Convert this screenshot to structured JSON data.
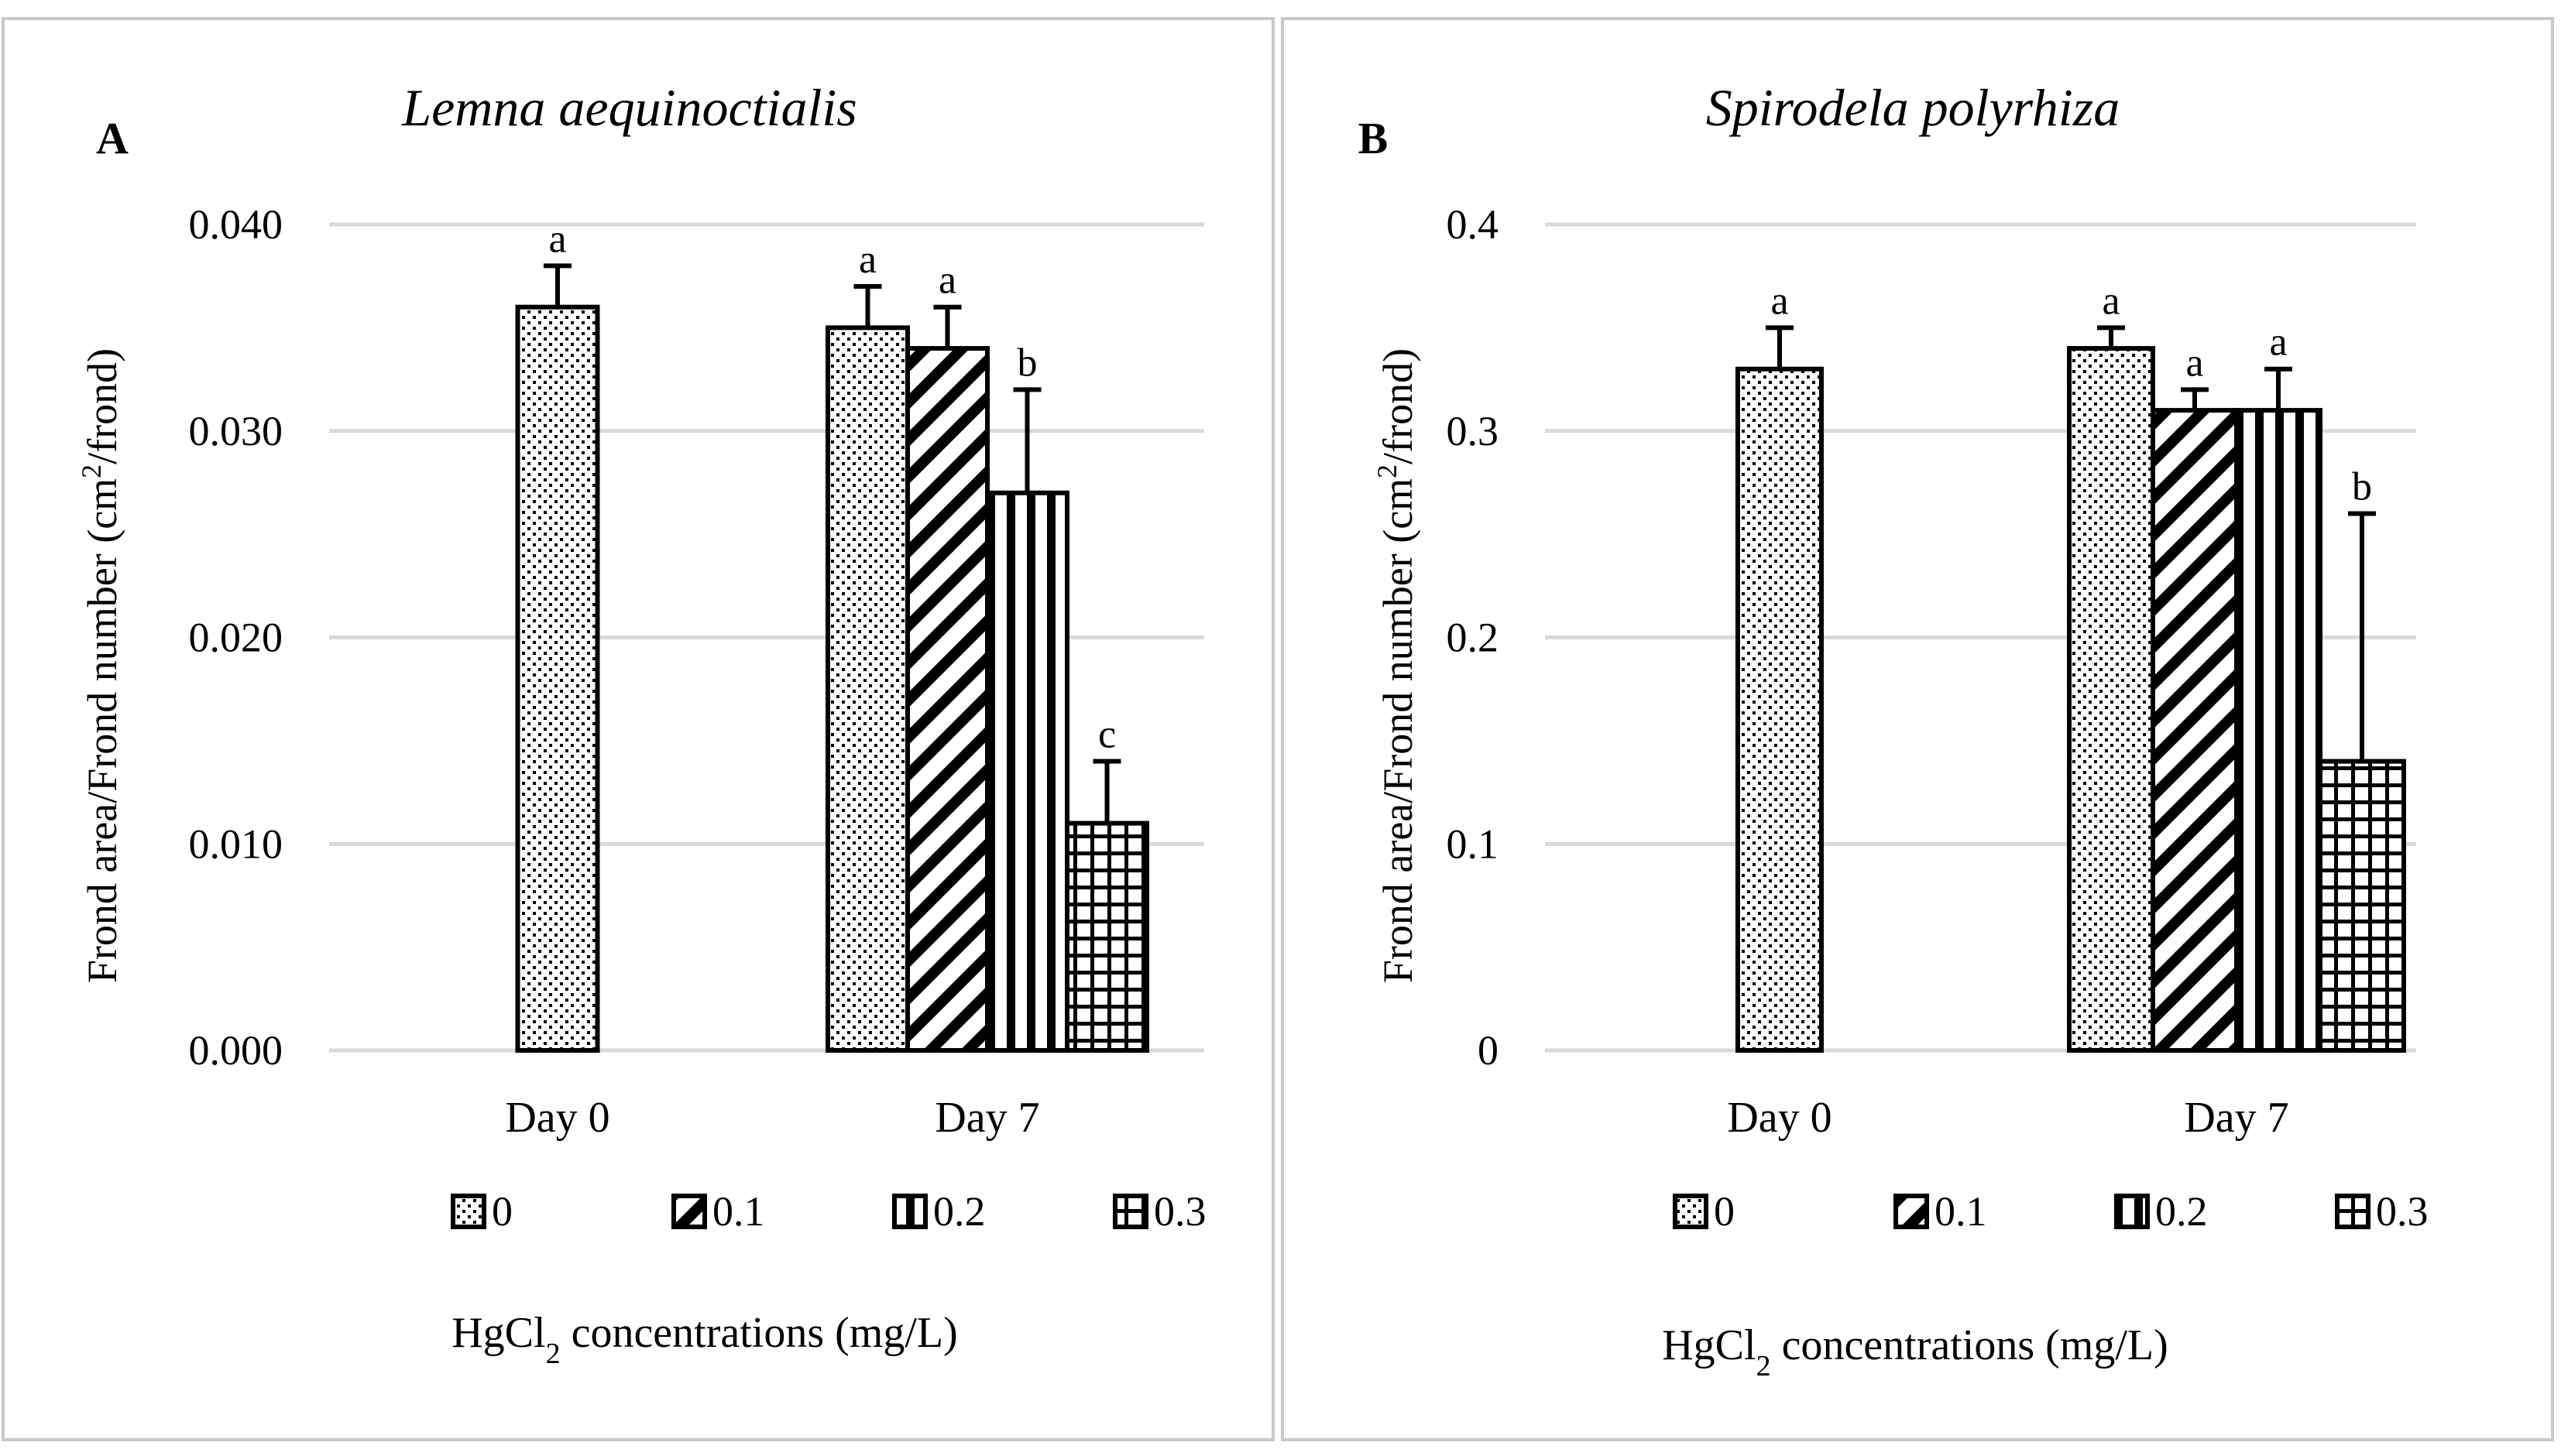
{
  "figure": {
    "legend_labels": [
      "0",
      "0.1",
      "0.2",
      "0.3"
    ],
    "pattern_names": [
      "dots",
      "diagonal",
      "vertical",
      "grid"
    ]
  },
  "chart_data": [
    {
      "type": "bar",
      "panel_label": "A",
      "title": "Lemna aequinoctialis",
      "categories": [
        "Day 0",
        "Day 7"
      ],
      "series": [
        {
          "name": "0",
          "pattern": "dots",
          "values": [
            0.036,
            0.035
          ],
          "errors": [
            0.002,
            0.002
          ],
          "letters": [
            "a",
            "a"
          ]
        },
        {
          "name": "0.1",
          "pattern": "diagonal",
          "values": [
            null,
            0.034
          ],
          "errors": [
            null,
            0.002
          ],
          "letters": [
            null,
            "a"
          ]
        },
        {
          "name": "0.2",
          "pattern": "vertical",
          "values": [
            null,
            0.027
          ],
          "errors": [
            null,
            0.005
          ],
          "letters": [
            null,
            "b"
          ]
        },
        {
          "name": "0.3",
          "pattern": "grid",
          "values": [
            null,
            0.011
          ],
          "errors": [
            null,
            0.003
          ],
          "letters": [
            null,
            "c"
          ]
        }
      ],
      "ylabel_main": "Frond area/Frond number (cm",
      "ylabel_sup": "2",
      "ylabel_end": "/frond)",
      "xlabel_main": "HgCl",
      "xlabel_sub": "2",
      "xlabel_end": " concentrations (mg/L)",
      "ylim": [
        0,
        0.04
      ],
      "yticks": [
        0,
        0.01,
        0.02,
        0.03,
        0.04
      ],
      "ytick_labels": [
        "0.000",
        "0.010",
        "0.020",
        "0.030",
        "0.040"
      ],
      "grid": true,
      "legend_position": "bottom"
    },
    {
      "type": "bar",
      "panel_label": "B",
      "title": "Spirodela polyrhiza",
      "categories": [
        "Day 0",
        "Day 7"
      ],
      "series": [
        {
          "name": "0",
          "pattern": "dots",
          "values": [
            0.33,
            0.34
          ],
          "errors": [
            0.02,
            0.01
          ],
          "letters": [
            "a",
            "a"
          ]
        },
        {
          "name": "0.1",
          "pattern": "diagonal",
          "values": [
            null,
            0.31
          ],
          "errors": [
            null,
            0.01
          ],
          "letters": [
            null,
            "a"
          ]
        },
        {
          "name": "0.2",
          "pattern": "vertical",
          "values": [
            null,
            0.31
          ],
          "errors": [
            null,
            0.02
          ],
          "letters": [
            null,
            "a"
          ]
        },
        {
          "name": "0.3",
          "pattern": "grid",
          "values": [
            null,
            0.14
          ],
          "errors": [
            null,
            0.12
          ],
          "letters": [
            null,
            "b"
          ]
        }
      ],
      "ylabel_main": "Frond area/Frond number (cm",
      "ylabel_sup": "2",
      "ylabel_end": "/frond)",
      "xlabel_main": "HgCl",
      "xlabel_sub": "2",
      "xlabel_end": " concentrations (mg/L)",
      "ylim": [
        0,
        0.4
      ],
      "yticks": [
        0,
        0.1,
        0.2,
        0.3,
        0.4
      ],
      "ytick_labels": [
        "0",
        "0.1",
        "0.2",
        "0.3",
        "0.4"
      ],
      "grid": true,
      "legend_position": "bottom"
    }
  ]
}
